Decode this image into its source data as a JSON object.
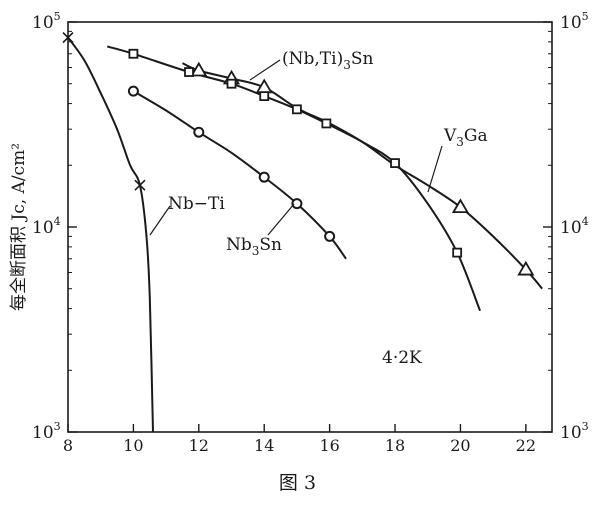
{
  "chart_data": {
    "type": "line",
    "ylabel": "每全断面积 Jc, A/cm²",
    "xlabel": "",
    "x_ticks": [
      8,
      10,
      12,
      14,
      16,
      18,
      20,
      22
    ],
    "y_scale": "log",
    "xlim": [
      8,
      22.8
    ],
    "ylim": [
      1000,
      100000
    ],
    "y_ticks_left": [
      {
        "base": "10",
        "exp": "5",
        "value": 100000
      },
      {
        "base": "10",
        "exp": "4",
        "value": 10000
      },
      {
        "base": "10",
        "exp": "3",
        "value": 1000
      }
    ],
    "y_ticks_right": [
      {
        "base": "10",
        "exp": "5",
        "value": 100000
      },
      {
        "base": "10",
        "exp": "4",
        "value": 10000
      },
      {
        "base": "10",
        "exp": "3",
        "value": 1000
      }
    ],
    "annotation": "4·2K",
    "series": [
      {
        "name": "Nb−Ti",
        "marker": "x",
        "points": [
          [
            8.0,
            84000
          ],
          [
            10.2,
            16000
          ]
        ],
        "curve": [
          [
            8.0,
            84000
          ],
          [
            8.5,
            65000
          ],
          [
            9.0,
            45000
          ],
          [
            9.5,
            30000
          ],
          [
            9.9,
            20000
          ],
          [
            10.2,
            16000
          ],
          [
            10.4,
            9000
          ],
          [
            10.5,
            4500
          ],
          [
            10.6,
            1000
          ]
        ]
      },
      {
        "name": "Nb₃Sn",
        "marker": "circle",
        "points": [
          [
            10.0,
            46000
          ],
          [
            12.0,
            29000
          ],
          [
            14.0,
            17500
          ],
          [
            15.0,
            13000
          ],
          [
            16.0,
            9000
          ]
        ],
        "curve": [
          [
            10.0,
            46000
          ],
          [
            11.0,
            37000
          ],
          [
            12.0,
            29000
          ],
          [
            13.0,
            23000
          ],
          [
            14.0,
            17500
          ],
          [
            15.0,
            13000
          ],
          [
            16.0,
            9000
          ],
          [
            16.5,
            7000
          ]
        ]
      },
      {
        "name": "(Nb,Ti)₃Sn",
        "marker": "triangle",
        "points": [
          [
            12.0,
            58000
          ],
          [
            13.0,
            53000
          ],
          [
            14.0,
            48000
          ],
          [
            20.0,
            12500
          ],
          [
            22.0,
            6200
          ]
        ],
        "curve": [
          [
            11.5,
            63000
          ],
          [
            12.0,
            58000
          ],
          [
            13.0,
            53000
          ],
          [
            14.0,
            48000
          ],
          [
            15.0,
            38000
          ],
          [
            16.0,
            32000
          ],
          [
            17.0,
            26000
          ],
          [
            18.0,
            20000
          ],
          [
            19.0,
            16000
          ],
          [
            20.0,
            12500
          ],
          [
            21.0,
            9000
          ],
          [
            22.0,
            6200
          ],
          [
            22.5,
            5000
          ]
        ]
      },
      {
        "name": "V₃Ga",
        "marker": "square",
        "points": [
          [
            10.0,
            70000
          ],
          [
            11.7,
            57000
          ],
          [
            13.0,
            50000
          ],
          [
            14.0,
            43500
          ],
          [
            15.0,
            37500
          ],
          [
            15.9,
            32000
          ],
          [
            18.0,
            20500
          ],
          [
            19.9,
            7500
          ]
        ],
        "curve": [
          [
            9.2,
            76000
          ],
          [
            10.0,
            70000
          ],
          [
            11.7,
            57000
          ],
          [
            13.0,
            50000
          ],
          [
            14.0,
            43500
          ],
          [
            15.0,
            37500
          ],
          [
            15.9,
            32000
          ],
          [
            17.0,
            26000
          ],
          [
            18.0,
            20500
          ],
          [
            19.0,
            13000
          ],
          [
            19.9,
            7500
          ],
          [
            20.6,
            3900
          ]
        ]
      }
    ]
  },
  "caption": "图 3"
}
